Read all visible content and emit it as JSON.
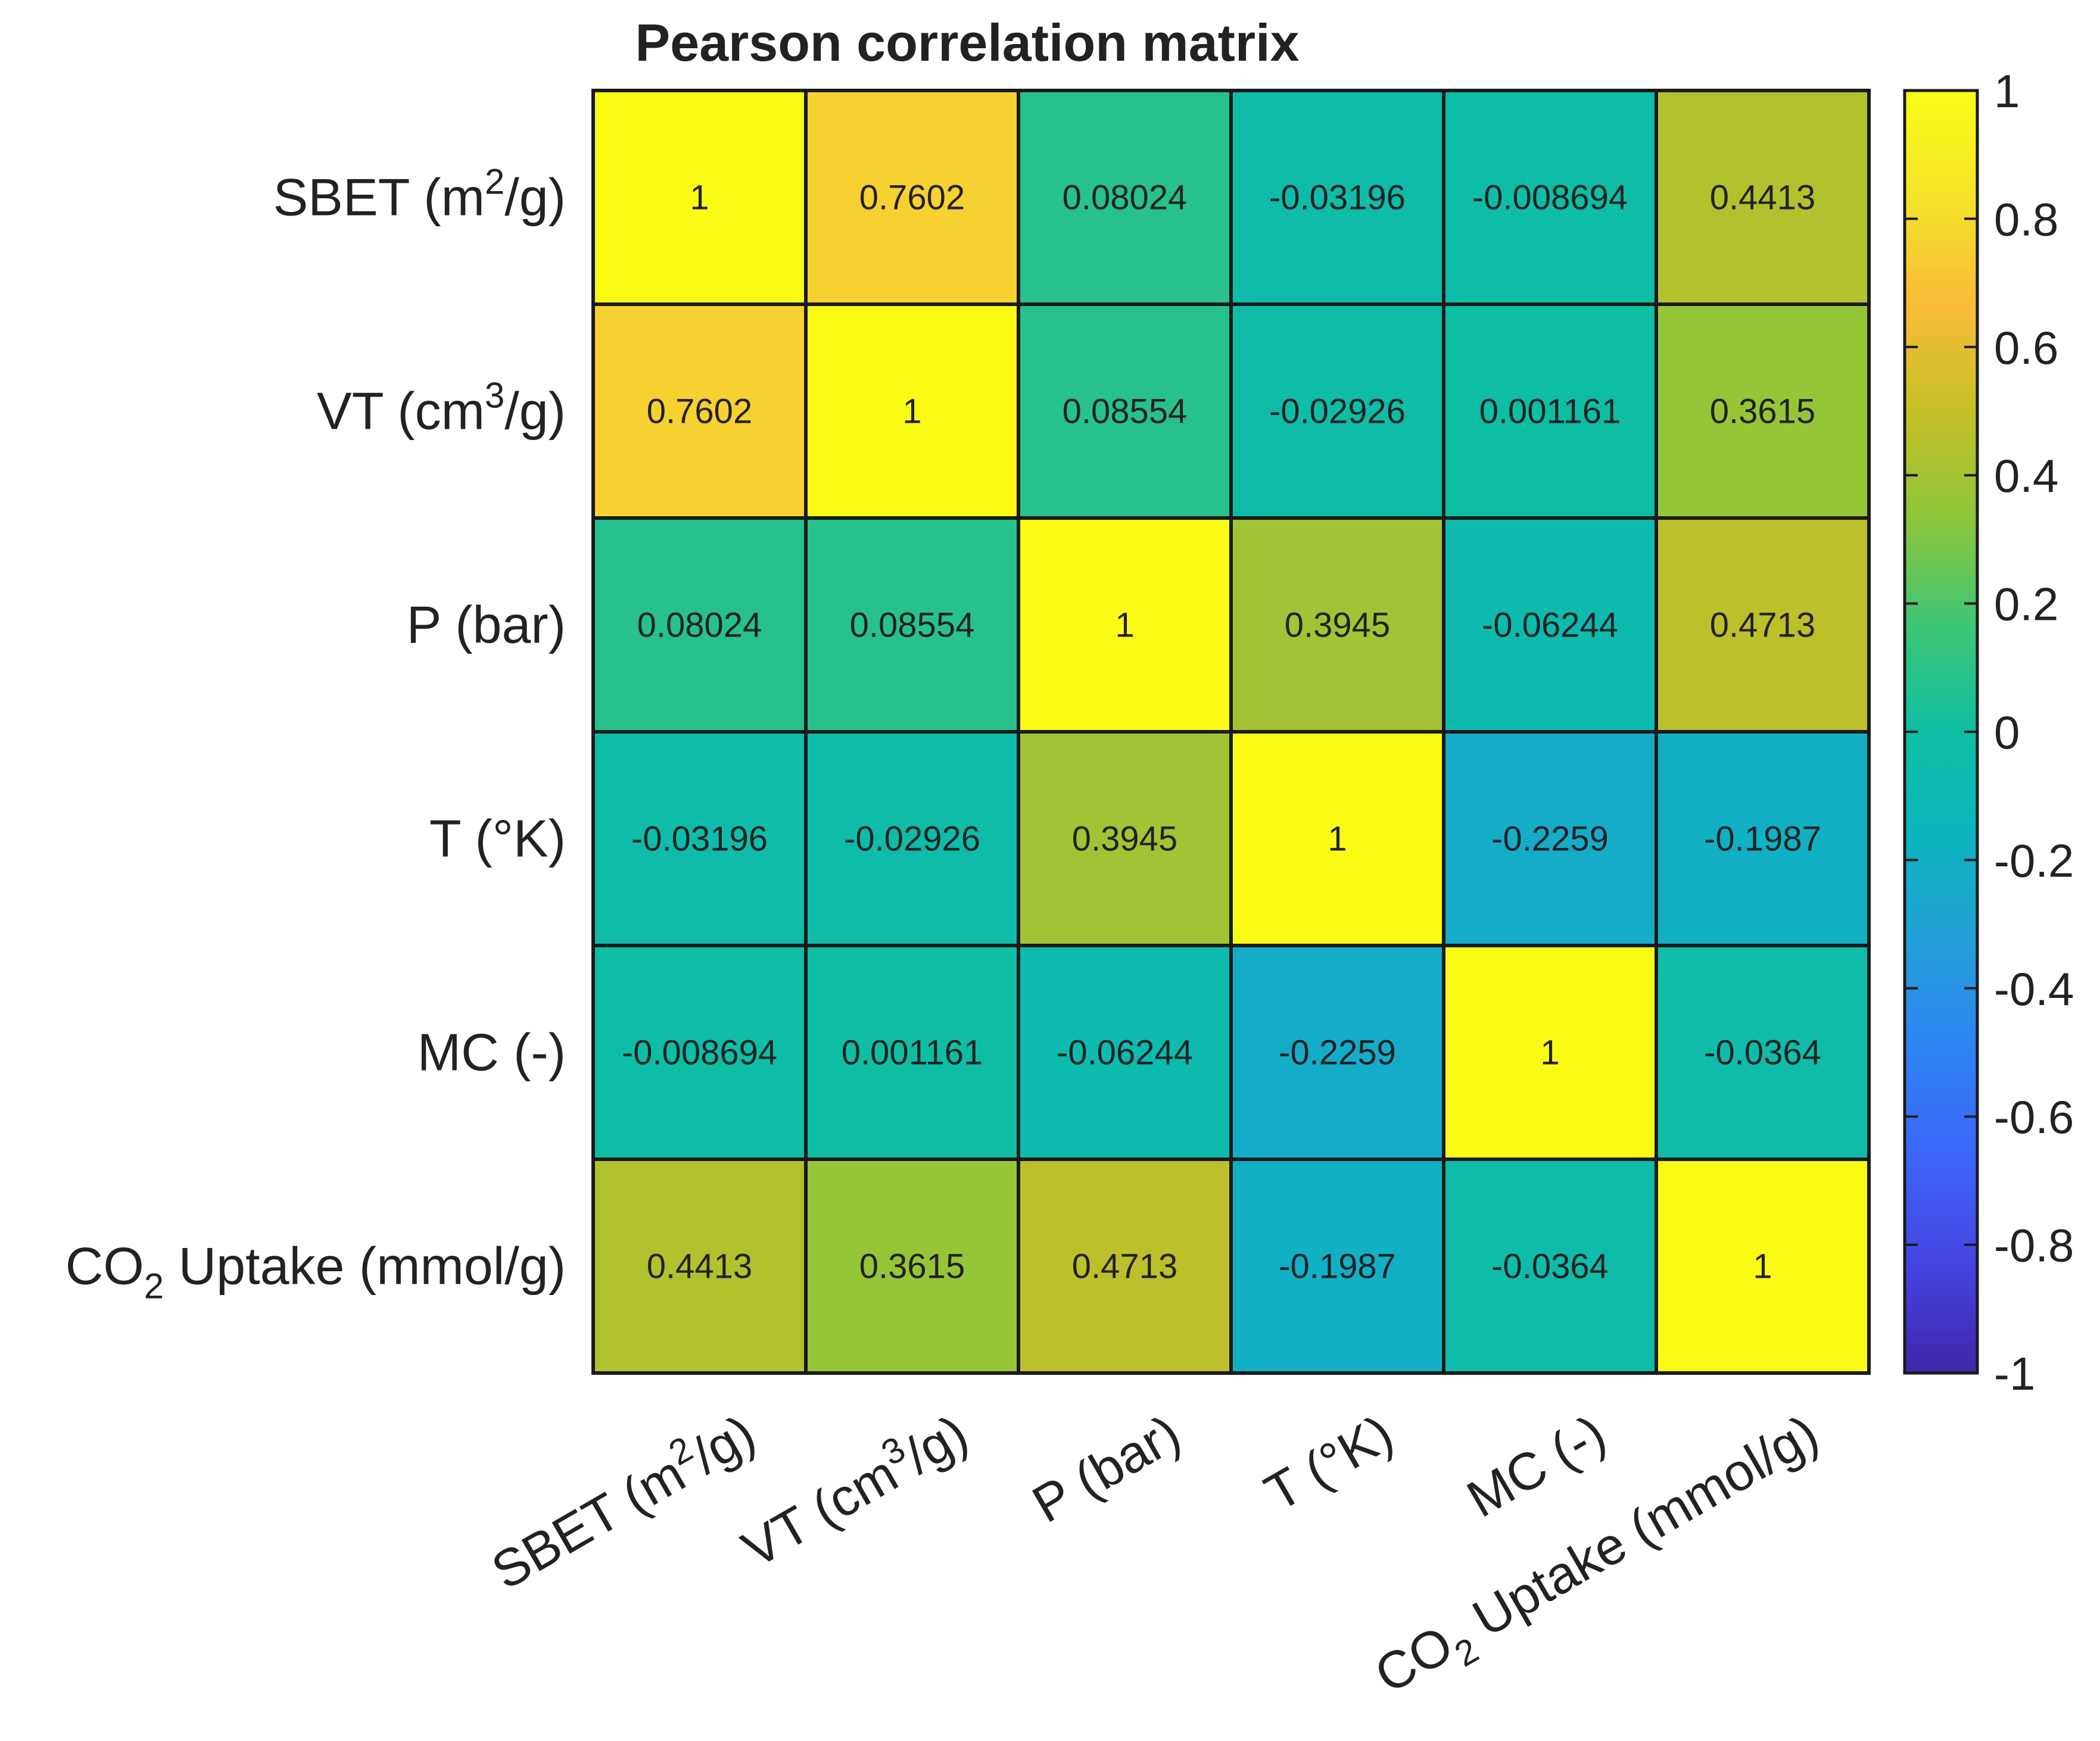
{
  "chart_data": {
    "type": "heatmap",
    "title": "Pearson correlation matrix",
    "row_labels": [
      {
        "base": "SBET (m",
        "sup": "2",
        "sub": "",
        "rest": "/g)"
      },
      {
        "base": "VT (cm",
        "sup": "3",
        "sub": "",
        "rest": "/g)"
      },
      {
        "base": "P (bar)",
        "sup": "",
        "sub": "",
        "rest": ""
      },
      {
        "base": "T (°K)",
        "sup": "",
        "sub": "",
        "rest": ""
      },
      {
        "base": "MC (-)",
        "sup": "",
        "sub": "",
        "rest": ""
      },
      {
        "base": "CO",
        "sup": "",
        "sub": "2",
        "rest": " Uptake (mmol/g)"
      }
    ],
    "col_labels": [
      {
        "base": "SBET (m",
        "sup": "2",
        "sub": "",
        "rest": "/g)"
      },
      {
        "base": "VT (cm",
        "sup": "3",
        "sub": "",
        "rest": "/g)"
      },
      {
        "base": "P (bar)",
        "sup": "",
        "sub": "",
        "rest": ""
      },
      {
        "base": "T (°K)",
        "sup": "",
        "sub": "",
        "rest": ""
      },
      {
        "base": "MC (-)",
        "sup": "",
        "sub": "",
        "rest": ""
      },
      {
        "base": "CO",
        "sup": "",
        "sub": "2",
        "rest": " Uptake (mmol/g)"
      }
    ],
    "values": [
      [
        1,
        0.7602,
        0.08024,
        -0.03196,
        -0.008694,
        0.4413
      ],
      [
        0.7602,
        1,
        0.08554,
        -0.02926,
        0.001161,
        0.3615
      ],
      [
        0.08024,
        0.08554,
        1,
        0.3945,
        -0.06244,
        0.4713
      ],
      [
        -0.03196,
        -0.02926,
        0.3945,
        1,
        -0.2259,
        -0.1987
      ],
      [
        -0.008694,
        0.001161,
        -0.06244,
        -0.2259,
        1,
        -0.0364
      ],
      [
        0.4413,
        0.3615,
        0.4713,
        -0.1987,
        -0.0364,
        1
      ]
    ],
    "cell_text": [
      [
        "1",
        "0.7602",
        "0.08024",
        "-0.03196",
        "-0.008694",
        "0.4413"
      ],
      [
        "0.7602",
        "1",
        "0.08554",
        "-0.02926",
        "0.001161",
        "0.3615"
      ],
      [
        "0.08024",
        "0.08554",
        "1",
        "0.3945",
        "-0.06244",
        "0.4713"
      ],
      [
        "-0.03196",
        "-0.02926",
        "0.3945",
        "1",
        "-0.2259",
        "-0.1987"
      ],
      [
        "-0.008694",
        "0.001161",
        "-0.06244",
        "-0.2259",
        "1",
        "-0.0364"
      ],
      [
        "0.4413",
        "0.3615",
        "0.4713",
        "-0.1987",
        "-0.0364",
        "1"
      ]
    ],
    "colorbar": {
      "range": [
        -1,
        1
      ],
      "ticks": [
        -1,
        -0.8,
        -0.6,
        -0.4,
        -0.2,
        0,
        0.2,
        0.4,
        0.6,
        0.8,
        1
      ],
      "tick_labels": [
        "-1",
        "-0.8",
        "-0.6",
        "-0.4",
        "-0.2",
        "0",
        "0.2",
        "0.4",
        "0.6",
        "0.8",
        "1"
      ],
      "colormap": "parula"
    }
  },
  "colors": {
    "grid_line": "#1a1a1a",
    "text": "#222222",
    "parula": [
      "#3e26a8",
      "#4743e0",
      "#3c64fa",
      "#2f83f4",
      "#259dd8",
      "#0cb4c0",
      "#0ebea3",
      "#3fc575",
      "#8ec63c",
      "#c5bf27",
      "#f9bb39",
      "#f5e32a",
      "#f9fb15"
    ]
  }
}
